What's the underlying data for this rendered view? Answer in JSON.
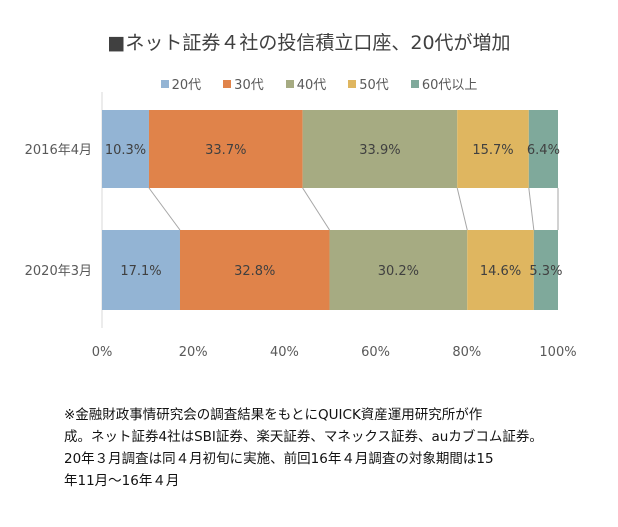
{
  "chart_data": {
    "type": "bar",
    "orientation": "horizontal-stacked-100",
    "title": "■ネット証券４社の投信積立口座、20代が増加",
    "categories": [
      "2016年4月",
      "2020年3月"
    ],
    "series": [
      {
        "name": "20代",
        "color": "#93b4d4",
        "values": [
          10.3,
          17.1
        ],
        "labels": [
          "10.3%",
          "17.1%"
        ]
      },
      {
        "name": "30代",
        "color": "#e0834a",
        "values": [
          33.7,
          32.8
        ],
        "labels": [
          "33.7%",
          "32.8%"
        ]
      },
      {
        "name": "40代",
        "color": "#a6ab82",
        "values": [
          33.9,
          30.2
        ],
        "labels": [
          "33.9%",
          "30.2%"
        ]
      },
      {
        "name": "50代",
        "color": "#dfb660",
        "values": [
          15.7,
          14.6
        ],
        "labels": [
          "15.7%",
          "14.6%"
        ]
      },
      {
        "name": "60代以上",
        "color": "#7fa99b",
        "values": [
          6.4,
          5.3
        ],
        "labels": [
          "6.4%",
          "5.3%"
        ]
      }
    ],
    "xticks": [
      "0%",
      "20%",
      "40%",
      "60%",
      "80%",
      "100%"
    ],
    "xlim": [
      0,
      100
    ],
    "legend": "top",
    "series_lines": true
  },
  "note": {
    "lines": [
      "※金融財政事情研究会の調査結果をもとにQUICK資産運用研究所が作",
      "成。ネット証券4社はSBI証券、楽天証券、マネックス証券、auカブコム証券。",
      "20年３月調査は同４月初旬に実施、前回16年４月調査の対象期間は15",
      "年11月～16年４月"
    ]
  }
}
